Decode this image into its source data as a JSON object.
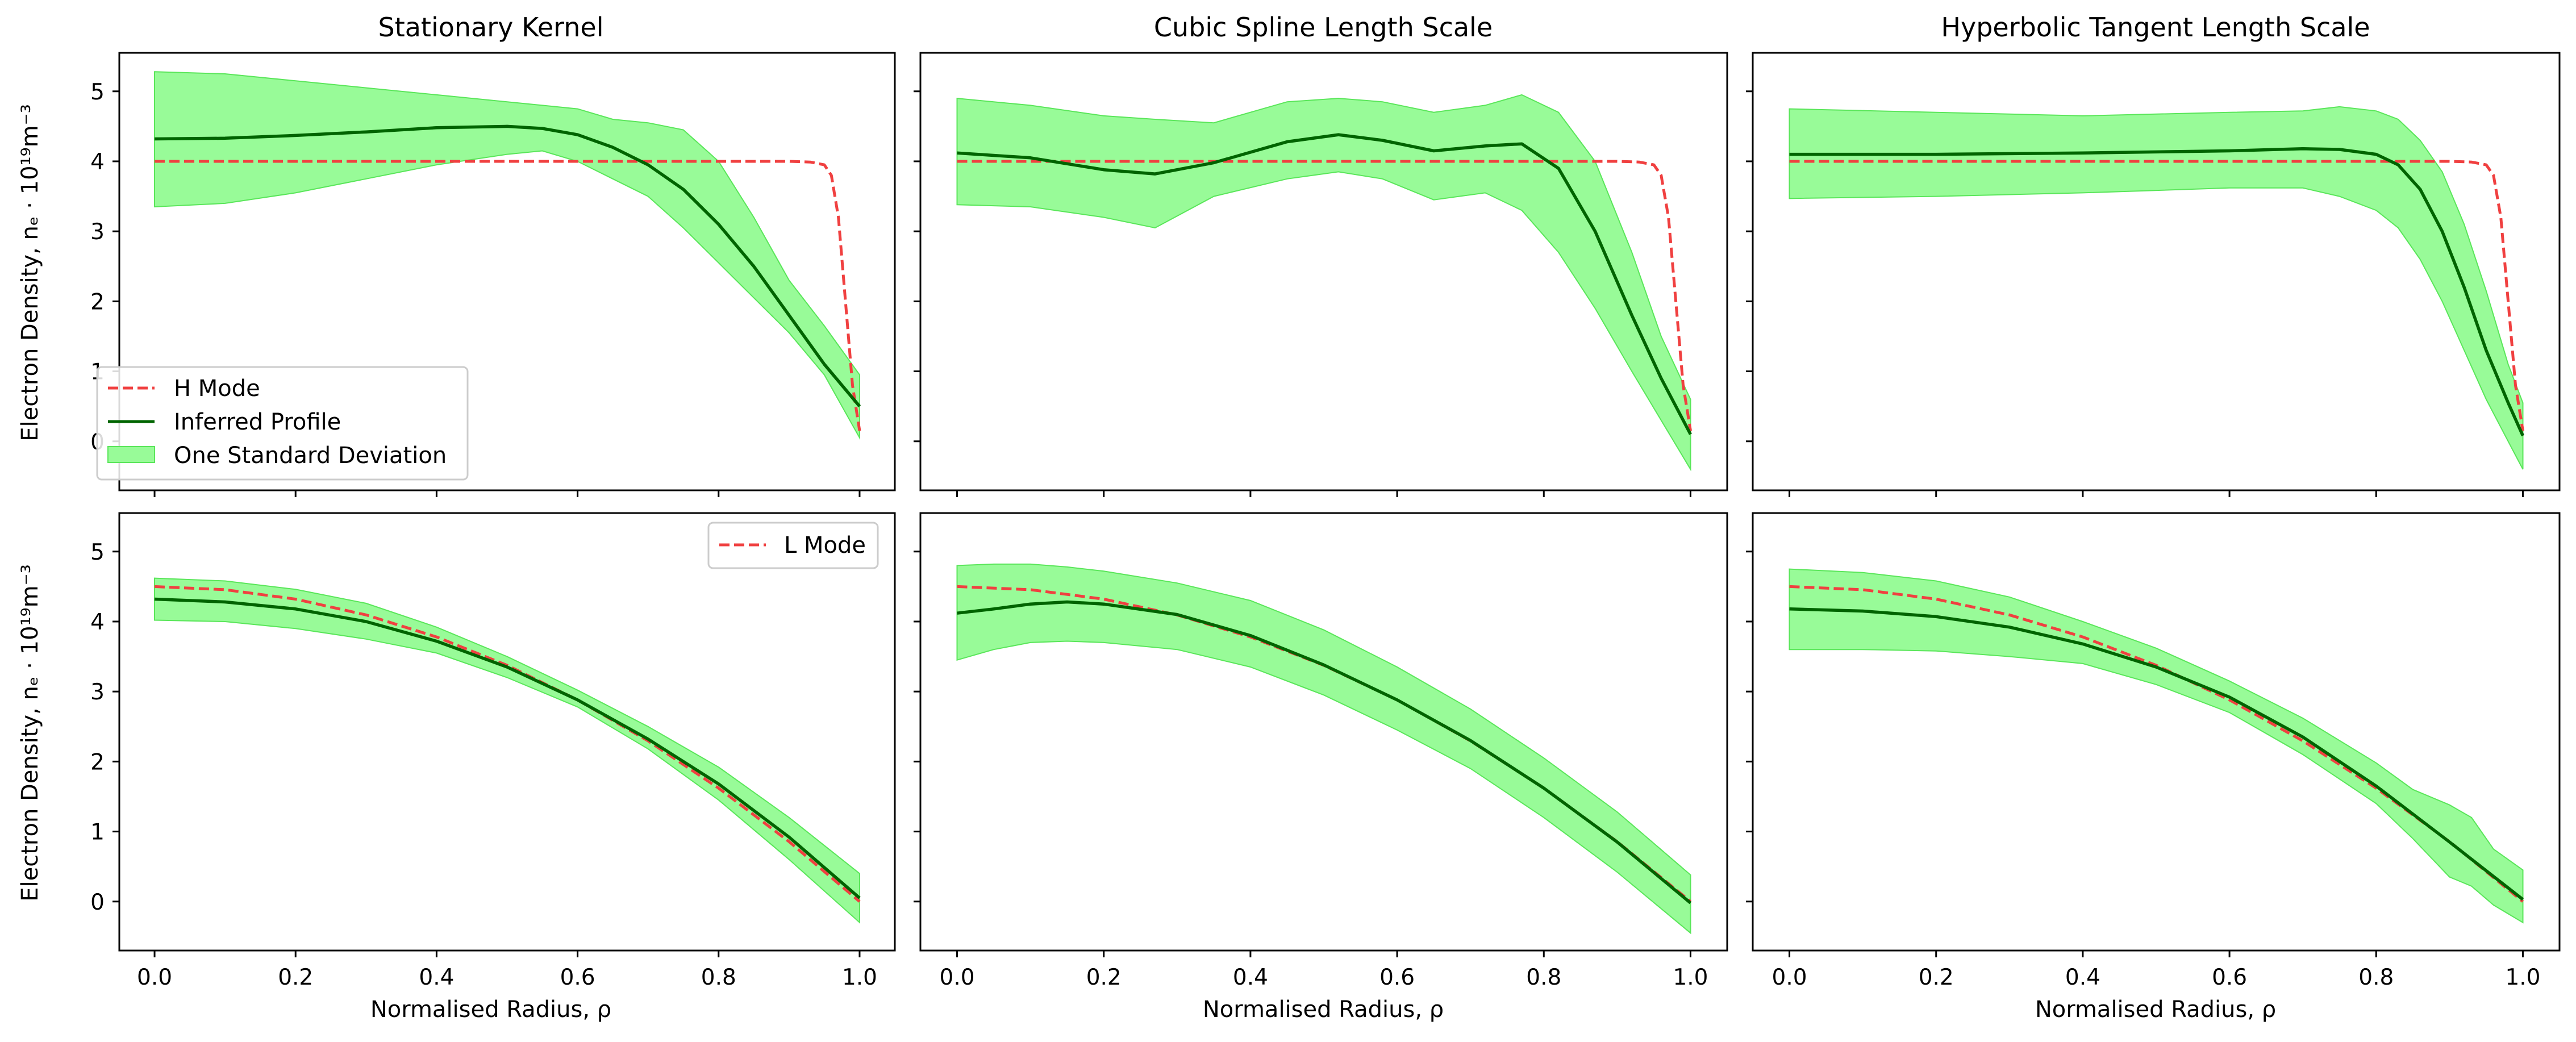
{
  "figure": {
    "xlabel": "Normalised Radius, ρ",
    "ylabel": "Electron Density, nₑ · 10¹⁹m⁻³",
    "xticks": [
      "0.0",
      "0.2",
      "0.4",
      "0.6",
      "0.8",
      "1.0"
    ],
    "yticks": [
      "0",
      "1",
      "2",
      "3",
      "4",
      "5"
    ],
    "column_titles": [
      "Stationary Kernel",
      "Cubic Spline Length Scale",
      "Hyperbolic Tangent Length Scale"
    ],
    "legend_top": [
      "H Mode",
      "Inferred Profile",
      "One Standard Deviation"
    ],
    "legend_bottom": [
      "L Mode"
    ]
  },
  "chart_data": [
    {
      "type": "line",
      "title": "Stationary Kernel",
      "xlabel": "",
      "ylabel": "Electron Density, nₑ · 10¹⁹m⁻³",
      "xlim": [
        -0.05,
        1.05
      ],
      "ylim": [
        -0.7,
        5.55
      ],
      "legend": "lower-left",
      "colors": {
        "reference": "#f04040",
        "profile": "#006400",
        "band": "#98fb98"
      },
      "series": [
        {
          "name": "H Mode",
          "style": "dashed",
          "x": [
            0,
            0.1,
            0.2,
            0.3,
            0.4,
            0.5,
            0.6,
            0.7,
            0.8,
            0.85,
            0.9,
            0.93,
            0.95,
            0.96,
            0.97,
            0.98,
            0.99,
            1.0
          ],
          "y": [
            4.0,
            4.0,
            4.0,
            4.0,
            4.0,
            4.0,
            4.0,
            4.0,
            4.0,
            4.0,
            4.0,
            3.99,
            3.95,
            3.8,
            3.2,
            2.0,
            0.8,
            0.15
          ]
        },
        {
          "name": "Inferred Profile",
          "style": "solid",
          "x": [
            0,
            0.1,
            0.2,
            0.3,
            0.4,
            0.5,
            0.55,
            0.6,
            0.65,
            0.7,
            0.75,
            0.8,
            0.85,
            0.9,
            0.95,
            1.0
          ],
          "y": [
            4.32,
            4.33,
            4.37,
            4.42,
            4.48,
            4.5,
            4.47,
            4.38,
            4.2,
            3.95,
            3.6,
            3.1,
            2.5,
            1.8,
            1.1,
            0.5
          ]
        },
        {
          "name": "One Standard Deviation",
          "style": "band",
          "x": [
            0,
            0.1,
            0.2,
            0.3,
            0.4,
            0.5,
            0.55,
            0.6,
            0.65,
            0.7,
            0.75,
            0.8,
            0.85,
            0.9,
            0.95,
            1.0
          ],
          "lower": [
            3.35,
            3.4,
            3.55,
            3.75,
            3.95,
            4.1,
            4.15,
            4.0,
            3.75,
            3.5,
            3.05,
            2.55,
            2.05,
            1.55,
            0.95,
            0.05
          ],
          "upper": [
            5.28,
            5.25,
            5.15,
            5.05,
            4.95,
            4.85,
            4.8,
            4.75,
            4.6,
            4.55,
            4.45,
            4.0,
            3.2,
            2.3,
            1.65,
            0.95
          ]
        }
      ]
    },
    {
      "type": "line",
      "title": "Cubic Spline Length Scale",
      "xlim": [
        -0.05,
        1.05
      ],
      "ylim": [
        -0.7,
        5.55
      ],
      "series": [
        {
          "name": "H Mode",
          "style": "dashed",
          "x": [
            0,
            0.2,
            0.4,
            0.6,
            0.8,
            0.9,
            0.93,
            0.95,
            0.96,
            0.97,
            0.98,
            0.99,
            1.0
          ],
          "y": [
            4.0,
            4.0,
            4.0,
            4.0,
            4.0,
            4.0,
            3.99,
            3.95,
            3.8,
            3.2,
            2.0,
            0.8,
            0.15
          ]
        },
        {
          "name": "Inferred Profile",
          "style": "solid",
          "x": [
            0,
            0.1,
            0.2,
            0.27,
            0.35,
            0.45,
            0.52,
            0.58,
            0.65,
            0.72,
            0.77,
            0.82,
            0.87,
            0.92,
            0.96,
            1.0
          ],
          "y": [
            4.12,
            4.05,
            3.88,
            3.82,
            3.98,
            4.28,
            4.38,
            4.3,
            4.15,
            4.22,
            4.25,
            3.9,
            3.0,
            1.8,
            0.9,
            0.1
          ]
        },
        {
          "name": "One Standard Deviation",
          "style": "band",
          "x": [
            0,
            0.1,
            0.2,
            0.27,
            0.35,
            0.45,
            0.52,
            0.58,
            0.65,
            0.72,
            0.77,
            0.82,
            0.87,
            0.92,
            0.96,
            1.0
          ],
          "lower": [
            3.38,
            3.35,
            3.2,
            3.05,
            3.5,
            3.75,
            3.85,
            3.75,
            3.45,
            3.55,
            3.3,
            2.7,
            1.9,
            1.0,
            0.3,
            -0.4
          ],
          "upper": [
            4.9,
            4.8,
            4.65,
            4.6,
            4.55,
            4.85,
            4.9,
            4.85,
            4.7,
            4.8,
            4.95,
            4.7,
            4.0,
            2.7,
            1.5,
            0.6
          ]
        }
      ]
    },
    {
      "type": "line",
      "title": "Hyperbolic Tangent Length Scale",
      "xlim": [
        -0.05,
        1.05
      ],
      "ylim": [
        -0.7,
        5.55
      ],
      "series": [
        {
          "name": "H Mode",
          "style": "dashed",
          "x": [
            0,
            0.2,
            0.4,
            0.6,
            0.8,
            0.9,
            0.93,
            0.95,
            0.96,
            0.97,
            0.98,
            0.99,
            1.0
          ],
          "y": [
            4.0,
            4.0,
            4.0,
            4.0,
            4.0,
            4.0,
            3.99,
            3.95,
            3.8,
            3.2,
            2.0,
            0.8,
            0.15
          ]
        },
        {
          "name": "Inferred Profile",
          "style": "solid",
          "x": [
            0,
            0.2,
            0.4,
            0.6,
            0.7,
            0.75,
            0.8,
            0.83,
            0.86,
            0.89,
            0.92,
            0.95,
            0.98,
            1.0
          ],
          "y": [
            4.1,
            4.1,
            4.12,
            4.15,
            4.18,
            4.17,
            4.1,
            3.95,
            3.6,
            3.0,
            2.2,
            1.3,
            0.55,
            0.08
          ]
        },
        {
          "name": "One Standard Deviation",
          "style": "band",
          "x": [
            0,
            0.2,
            0.4,
            0.6,
            0.7,
            0.75,
            0.8,
            0.83,
            0.86,
            0.89,
            0.92,
            0.95,
            0.98,
            1.0
          ],
          "lower": [
            3.47,
            3.5,
            3.55,
            3.62,
            3.62,
            3.5,
            3.3,
            3.05,
            2.6,
            2.0,
            1.3,
            0.6,
            0.0,
            -0.4
          ],
          "upper": [
            4.75,
            4.7,
            4.65,
            4.7,
            4.72,
            4.78,
            4.72,
            4.6,
            4.3,
            3.85,
            3.1,
            2.15,
            1.1,
            0.55
          ]
        }
      ]
    },
    {
      "type": "line",
      "title": "",
      "xlabel": "Normalised Radius, ρ",
      "ylabel": "Electron Density, nₑ · 10¹⁹m⁻³",
      "xlim": [
        -0.05,
        1.05
      ],
      "ylim": [
        -0.7,
        5.55
      ],
      "legend": "top-right",
      "series": [
        {
          "name": "L Mode",
          "style": "dashed",
          "x": [
            0,
            0.1,
            0.2,
            0.3,
            0.4,
            0.5,
            0.6,
            0.7,
            0.8,
            0.9,
            1.0
          ],
          "y": [
            4.5,
            4.455,
            4.32,
            4.095,
            3.78,
            3.375,
            2.88,
            2.295,
            1.62,
            0.855,
            0.0
          ]
        },
        {
          "name": "Inferred Profile",
          "style": "solid",
          "x": [
            0,
            0.1,
            0.2,
            0.3,
            0.4,
            0.5,
            0.6,
            0.7,
            0.8,
            0.9,
            1.0
          ],
          "y": [
            4.32,
            4.28,
            4.18,
            4.0,
            3.72,
            3.35,
            2.88,
            2.32,
            1.68,
            0.92,
            0.05
          ]
        },
        {
          "name": "One Standard Deviation",
          "style": "band",
          "x": [
            0,
            0.1,
            0.2,
            0.3,
            0.4,
            0.5,
            0.6,
            0.7,
            0.8,
            0.9,
            1.0
          ],
          "lower": [
            4.02,
            4.0,
            3.9,
            3.75,
            3.55,
            3.2,
            2.78,
            2.18,
            1.45,
            0.6,
            -0.3
          ],
          "upper": [
            4.62,
            4.58,
            4.46,
            4.26,
            3.92,
            3.5,
            3.02,
            2.5,
            1.92,
            1.2,
            0.4
          ]
        }
      ]
    },
    {
      "type": "line",
      "title": "",
      "xlabel": "Normalised Radius, ρ",
      "xlim": [
        -0.05,
        1.05
      ],
      "ylim": [
        -0.7,
        5.55
      ],
      "series": [
        {
          "name": "L Mode",
          "style": "dashed",
          "x": [
            0,
            0.1,
            0.2,
            0.3,
            0.4,
            0.5,
            0.6,
            0.7,
            0.8,
            0.9,
            1.0
          ],
          "y": [
            4.5,
            4.455,
            4.32,
            4.095,
            3.78,
            3.375,
            2.88,
            2.295,
            1.62,
            0.855,
            0.0
          ]
        },
        {
          "name": "Inferred Profile",
          "style": "solid",
          "x": [
            0,
            0.05,
            0.1,
            0.15,
            0.2,
            0.3,
            0.4,
            0.5,
            0.6,
            0.7,
            0.8,
            0.9,
            1.0
          ],
          "y": [
            4.12,
            4.18,
            4.25,
            4.28,
            4.25,
            4.1,
            3.8,
            3.38,
            2.88,
            2.3,
            1.62,
            0.85,
            -0.02
          ]
        },
        {
          "name": "One Standard Deviation",
          "style": "band",
          "x": [
            0,
            0.05,
            0.1,
            0.15,
            0.2,
            0.3,
            0.4,
            0.5,
            0.6,
            0.7,
            0.8,
            0.9,
            1.0
          ],
          "lower": [
            3.45,
            3.6,
            3.7,
            3.72,
            3.7,
            3.6,
            3.35,
            2.95,
            2.45,
            1.9,
            1.2,
            0.42,
            -0.45
          ],
          "upper": [
            4.8,
            4.82,
            4.82,
            4.78,
            4.72,
            4.55,
            4.3,
            3.88,
            3.35,
            2.75,
            2.05,
            1.28,
            0.38
          ]
        }
      ]
    },
    {
      "type": "line",
      "title": "",
      "xlabel": "Normalised Radius, ρ",
      "xlim": [
        -0.05,
        1.05
      ],
      "ylim": [
        -0.7,
        5.55
      ],
      "series": [
        {
          "name": "L Mode",
          "style": "dashed",
          "x": [
            0,
            0.1,
            0.2,
            0.3,
            0.4,
            0.5,
            0.6,
            0.7,
            0.8,
            0.9,
            1.0
          ],
          "y": [
            4.5,
            4.455,
            4.32,
            4.095,
            3.78,
            3.375,
            2.88,
            2.295,
            1.62,
            0.855,
            0.0
          ]
        },
        {
          "name": "Inferred Profile",
          "style": "solid",
          "x": [
            0,
            0.1,
            0.2,
            0.3,
            0.4,
            0.5,
            0.6,
            0.7,
            0.8,
            0.9,
            1.0
          ],
          "y": [
            4.18,
            4.15,
            4.07,
            3.92,
            3.68,
            3.35,
            2.92,
            2.35,
            1.65,
            0.85,
            0.03
          ]
        },
        {
          "name": "One Standard Deviation",
          "style": "band",
          "x": [
            0,
            0.1,
            0.2,
            0.3,
            0.4,
            0.5,
            0.6,
            0.7,
            0.8,
            0.85,
            0.9,
            0.93,
            0.96,
            1.0
          ],
          "lower": [
            3.6,
            3.6,
            3.58,
            3.5,
            3.4,
            3.1,
            2.7,
            2.1,
            1.4,
            0.9,
            0.35,
            0.22,
            -0.05,
            -0.3
          ],
          "upper": [
            4.75,
            4.7,
            4.58,
            4.35,
            4.0,
            3.62,
            3.15,
            2.62,
            1.98,
            1.6,
            1.38,
            1.2,
            0.75,
            0.45
          ]
        }
      ]
    }
  ]
}
